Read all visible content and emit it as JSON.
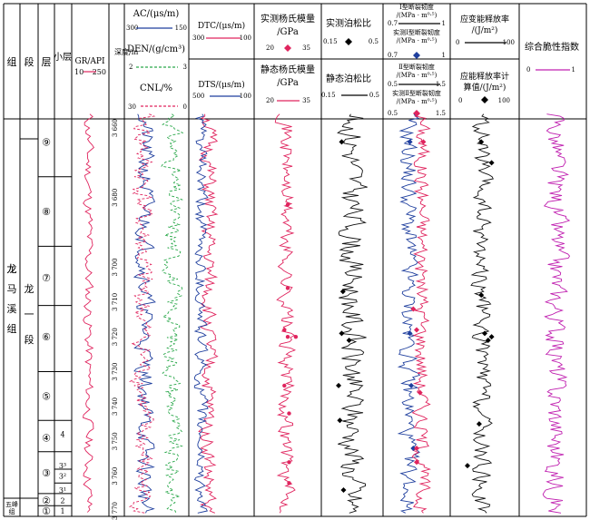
{
  "headers": {
    "group": "组",
    "section": "段",
    "layer": "层",
    "sublayer": "小层",
    "gr": {
      "label": "GR/API",
      "min": "10",
      "max": "250"
    },
    "depth": "深度/m",
    "ac": {
      "label": "AC/(μs/m)",
      "min": "300",
      "max": "150"
    },
    "den": {
      "label": "DEN/(g/cm³)",
      "min": "2",
      "max": "3"
    },
    "cnl": {
      "label": "CNL/%",
      "min": "30",
      "max": "0"
    },
    "dtc": {
      "label": "DTC/(μs/m)",
      "min": "300",
      "max": "100"
    },
    "dts": {
      "label": "DTS/(μs/m)",
      "min": "500",
      "max": "100"
    },
    "e_meas": {
      "label1": "实测杨氏模量",
      "label2": "/GPa",
      "min": "20",
      "max": "35"
    },
    "e_static": {
      "label1": "静态杨氏模量",
      "label2": "/GPa",
      "min": "20",
      "max": "35"
    },
    "nu_meas": {
      "label": "实测泊松比",
      "min": "0.15",
      "max": "0.5"
    },
    "nu_static": {
      "label": "静态泊松比",
      "min": "0.15",
      "max": "0.5"
    },
    "k1": {
      "label1": "Ⅰ型断裂韧度",
      "label2": "/(MPa · m⁰·⁵)",
      "min": "0.7",
      "max": "1"
    },
    "k1m": {
      "label1": "实测Ⅰ型断裂韧度",
      "label2": "/(MPa · m⁰·⁵)",
      "min": "0.7",
      "max": "1"
    },
    "k2": {
      "label1": "Ⅱ型断裂韧度",
      "label2": "/(MPa · m⁰·⁵)",
      "min": "0.5",
      "max": "1.5"
    },
    "k2m": {
      "label1": "实测Ⅱ型断裂韧度",
      "label2": "/(MPa · m⁰·⁵)",
      "min": "0.5",
      "max": "1.5"
    },
    "g": {
      "label1": "应变能释放率",
      "label2": "/(J/m²)",
      "min": "0",
      "max": "100"
    },
    "gm": {
      "label1": "应能释放率计",
      "label2": "算值/(J/m²)",
      "min": "0",
      "max": "100"
    },
    "bi": {
      "label": "综合脆性指数",
      "min": "0",
      "max": "1"
    }
  },
  "strat": {
    "group_main": "龙马溪组",
    "group_bottom": "五峰组",
    "section_main": "龙一段",
    "layers": [
      "⑨",
      "⑧",
      "⑦",
      "⑥",
      "⑤",
      "④",
      "③",
      "②",
      "①"
    ],
    "sublayers": [
      "4",
      "3³",
      "3²",
      "3¹",
      "2",
      "1"
    ]
  },
  "chart_data": {
    "type": "well-log",
    "depth_ticks": [
      3660,
      3680,
      3700,
      3710,
      3720,
      3730,
      3740,
      3750,
      3760,
      3770
    ],
    "tracks": [
      {
        "name": "GR",
        "unit": "API",
        "range": [
          10,
          250
        ],
        "color": "#e0245e"
      },
      {
        "name": "AC",
        "unit": "μs/m",
        "range": [
          300,
          150
        ],
        "color": "#1f3f9e"
      },
      {
        "name": "DEN",
        "unit": "g/cm³",
        "range": [
          2,
          3
        ],
        "color": "#2aa84a"
      },
      {
        "name": "CNL",
        "unit": "%",
        "range": [
          30,
          0
        ],
        "color": "#e0245e"
      },
      {
        "name": "DTC",
        "unit": "μs/m",
        "range": [
          300,
          100
        ],
        "color": "#e0245e"
      },
      {
        "name": "DTS",
        "unit": "μs/m",
        "range": [
          500,
          100
        ],
        "color": "#1f3f9e"
      },
      {
        "name": "Young's modulus",
        "unit": "GPa",
        "range": [
          20,
          35
        ],
        "color": "#e0245e"
      },
      {
        "name": "Poisson's ratio",
        "range": [
          0.15,
          0.5
        ],
        "color": "#111111"
      },
      {
        "name": "KIC",
        "unit": "MPa·m^0.5",
        "range": [
          0.7,
          1
        ],
        "color": "#1f3f9e"
      },
      {
        "name": "KIIC",
        "unit": "MPa·m^0.5",
        "range": [
          0.5,
          1.5
        ],
        "color": "#e0245e"
      },
      {
        "name": "Strain energy release rate",
        "unit": "J/m²",
        "range": [
          0,
          100
        ],
        "color": "#111111"
      },
      {
        "name": "Brittleness index",
        "range": [
          0,
          1
        ],
        "color": "#c020b0"
      }
    ],
    "measured_points": {
      "E": [
        [
          3682,
          0.5
        ],
        [
          3706,
          0.5
        ],
        [
          3718,
          0.45
        ],
        [
          3720,
          0.5
        ],
        [
          3720,
          0.62
        ],
        [
          3734,
          0.45
        ],
        [
          3742,
          0.52
        ],
        [
          3756,
          0.52
        ],
        [
          3762,
          0.52
        ]
      ],
      "nu": [
        [
          3664,
          0.33
        ],
        [
          3707,
          0.35
        ],
        [
          3719,
          0.33
        ],
        [
          3721,
          0.45
        ],
        [
          3734,
          0.28
        ],
        [
          3744,
          0.3
        ],
        [
          3764,
          0.36
        ]
      ],
      "k1": [
        [
          3664,
          0.4
        ],
        [
          3719,
          0.4
        ],
        [
          3734,
          0.42
        ],
        [
          3752,
          0.45
        ]
      ],
      "k2": [
        [
          3664,
          0.6
        ],
        [
          3712,
          0.45
        ],
        [
          3718,
          0.5
        ],
        [
          3736,
          0.55
        ],
        [
          3752,
          0.5
        ],
        [
          3756,
          0.5
        ]
      ],
      "g": [
        [
          3664,
          0.45
        ],
        [
          3670,
          0.6
        ],
        [
          3708,
          0.45
        ],
        [
          3719,
          0.5
        ],
        [
          3720,
          0.6
        ],
        [
          3721,
          0.55
        ],
        [
          3745,
          0.42
        ],
        [
          3757,
          0.25
        ]
      ]
    }
  }
}
